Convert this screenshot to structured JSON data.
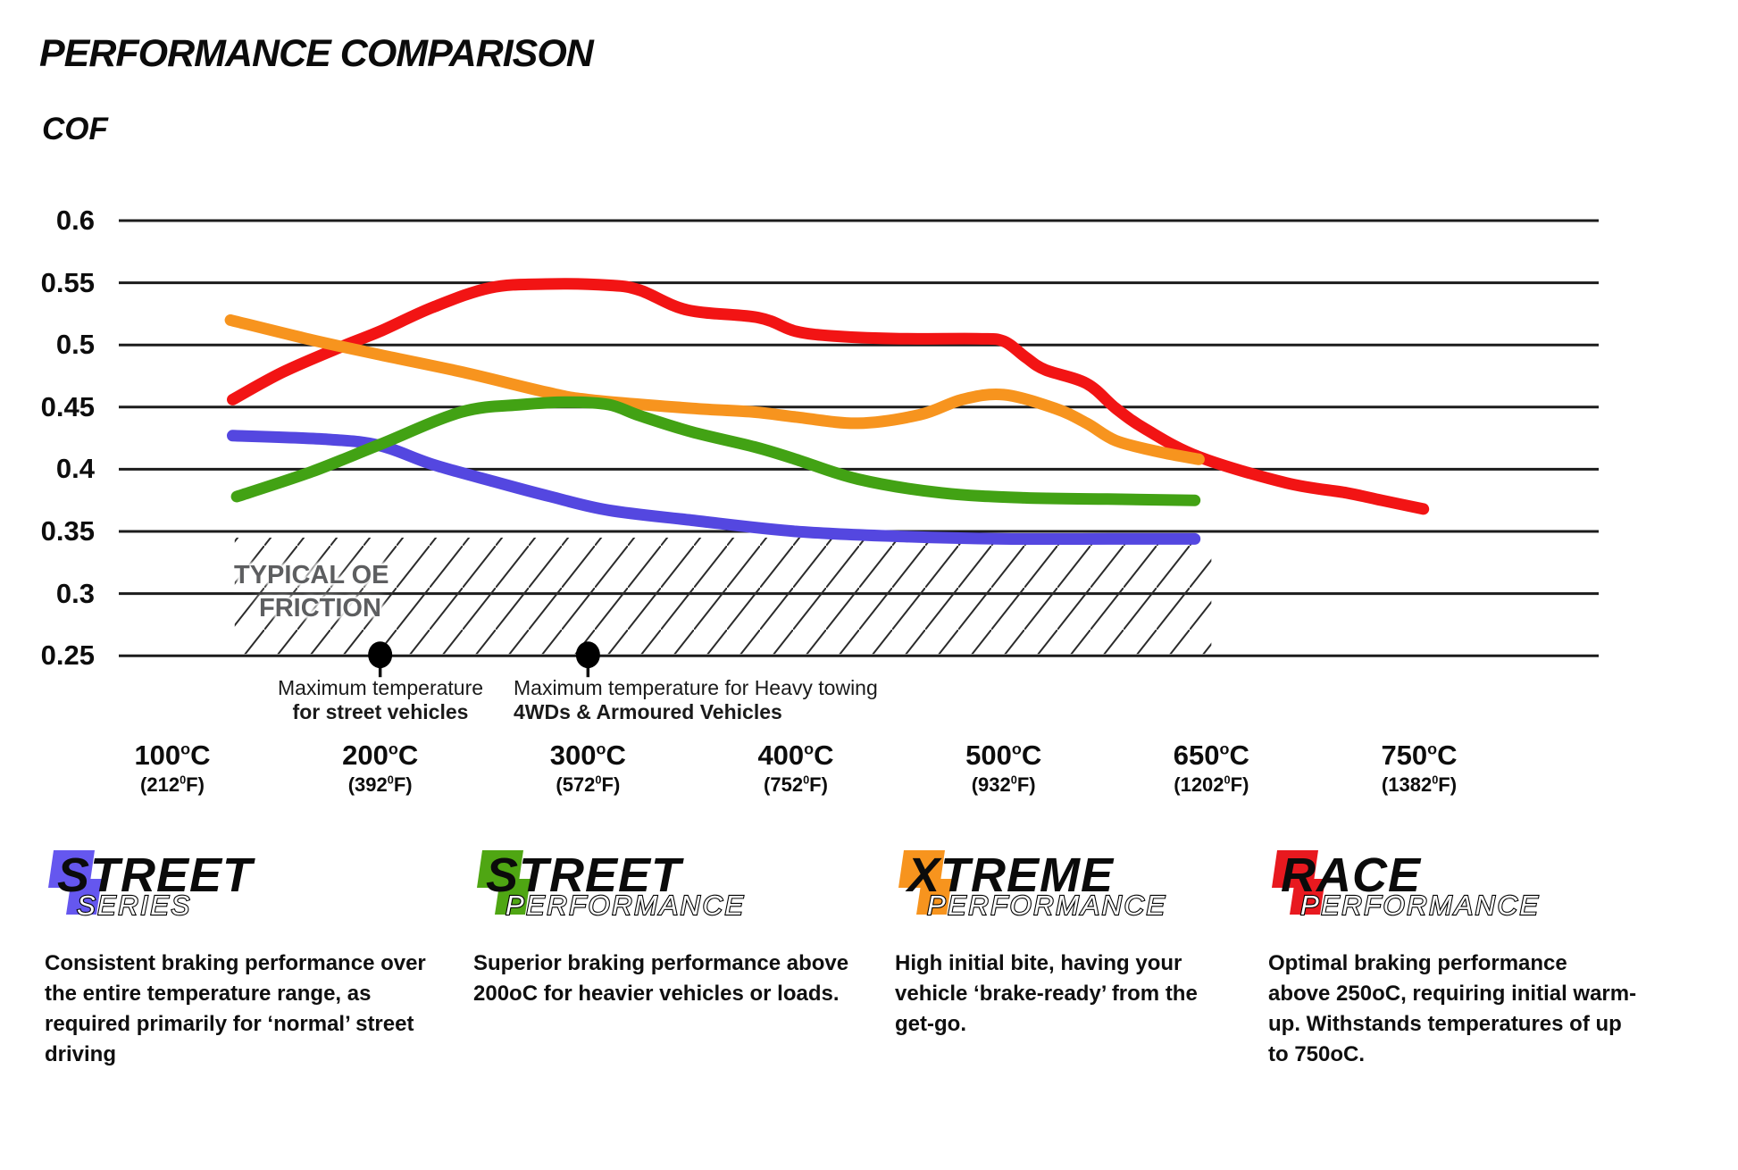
{
  "page": {
    "background": "#ffffff"
  },
  "header": {
    "title": "PERFORMANCE COMPARISON",
    "y_axis_title": "COF"
  },
  "chart_data": {
    "type": "line",
    "title": "PERFORMANCE COMPARISON",
    "ylabel": "COF",
    "ylim": [
      0.25,
      0.6
    ],
    "grid": "horizontal gridlines every 0.05, no vertical axis line",
    "gridline_color": "#1c1c1c",
    "y_ticks": [
      "0.6",
      "0.55",
      "0.5",
      "0.45",
      "0.4",
      "0.35",
      "0.3",
      "0.25"
    ],
    "x_axis": {
      "note": "categorical equal spacing",
      "categories_c": [
        "100",
        "200",
        "300",
        "400",
        "500",
        "650",
        "750"
      ],
      "categories_f": [
        "212",
        "392",
        "572",
        "752",
        "932",
        "1202",
        "1382"
      ],
      "c_sup": "o",
      "c_suffix": "C",
      "f_open": "(",
      "f_sup": "0",
      "f_suffix": "F)"
    },
    "series": [
      {
        "name": "Street Series",
        "color": "#5447e0",
        "points": [
          [
            129,
            0.427
          ],
          [
            175,
            0.424
          ],
          [
            200,
            0.419
          ],
          [
            225,
            0.404
          ],
          [
            255,
            0.39
          ],
          [
            282,
            0.378
          ],
          [
            310,
            0.367
          ],
          [
            350,
            0.359
          ],
          [
            400,
            0.35
          ],
          [
            450,
            0.346
          ],
          [
            500,
            0.344
          ],
          [
            575,
            0.344
          ],
          [
            638,
            0.344
          ]
        ]
      },
      {
        "name": "Race Performance",
        "color": "#f21414",
        "points": [
          [
            129,
            0.456
          ],
          [
            153,
            0.478
          ],
          [
            182,
            0.499
          ],
          [
            200,
            0.511
          ],
          [
            225,
            0.53
          ],
          [
            253,
            0.546
          ],
          [
            280,
            0.549
          ],
          [
            310,
            0.548
          ],
          [
            325,
            0.544
          ],
          [
            348,
            0.528
          ],
          [
            382,
            0.522
          ],
          [
            400,
            0.511
          ],
          [
            420,
            0.507
          ],
          [
            450,
            0.505
          ],
          [
            487,
            0.505
          ],
          [
            500,
            0.503
          ],
          [
            516,
            0.49
          ],
          [
            530,
            0.48
          ],
          [
            560,
            0.469
          ],
          [
            581,
            0.449
          ],
          [
            603,
            0.432
          ],
          [
            641,
            0.41
          ],
          [
            686,
            0.389
          ],
          [
            715,
            0.381
          ],
          [
            732,
            0.375
          ],
          [
            752,
            0.368
          ]
        ]
      },
      {
        "name": "Xtreme Performance",
        "color": "#f7941e",
        "points": [
          [
            128,
            0.52
          ],
          [
            167,
            0.504
          ],
          [
            200,
            0.492
          ],
          [
            240,
            0.478
          ],
          [
            280,
            0.462
          ],
          [
            300,
            0.456
          ],
          [
            350,
            0.449
          ],
          [
            380,
            0.446
          ],
          [
            400,
            0.442
          ],
          [
            430,
            0.437
          ],
          [
            460,
            0.444
          ],
          [
            480,
            0.456
          ],
          [
            500,
            0.46
          ],
          [
            537,
            0.449
          ],
          [
            560,
            0.437
          ],
          [
            581,
            0.423
          ],
          [
            612,
            0.414
          ],
          [
            641,
            0.408
          ]
        ]
      },
      {
        "name": "Street Performance",
        "color": "#42a214",
        "points": [
          [
            131,
            0.378
          ],
          [
            167,
            0.398
          ],
          [
            200,
            0.42
          ],
          [
            239,
            0.446
          ],
          [
            268,
            0.452
          ],
          [
            290,
            0.454
          ],
          [
            310,
            0.452
          ],
          [
            325,
            0.443
          ],
          [
            350,
            0.43
          ],
          [
            380,
            0.418
          ],
          [
            400,
            0.408
          ],
          [
            430,
            0.392
          ],
          [
            470,
            0.381
          ],
          [
            515,
            0.377
          ],
          [
            575,
            0.376
          ],
          [
            638,
            0.375
          ]
        ]
      }
    ],
    "oe_band": {
      "label_line1": "TYPICAL OE",
      "label_line2": "FRICTION",
      "cof_range": [
        0.25,
        0.345
      ],
      "temp_range": [
        130,
        650
      ],
      "style": "diagonal hatch"
    },
    "annotations": [
      {
        "temp": 200,
        "cof": 0.25,
        "line1": "Maximum temperature",
        "line2": "for street vehicles"
      },
      {
        "temp": 300,
        "cof": 0.25,
        "line1": "Maximum temperature for Heavy towing",
        "line2": "4WDs & Armoured Vehicles"
      }
    ]
  },
  "legend": {
    "items": [
      {
        "id": "street-series",
        "word1": "STREET",
        "word2": "SERIES",
        "color": "#6557ef",
        "description": "Consistent braking performance over\nthe entire temperature range, as\nrequired primarily for ‘normal’ street\ndriving"
      },
      {
        "id": "street-performance",
        "word1": "STREET",
        "word2": "PERFORMANCE",
        "color": "#4fa613",
        "description": "Superior braking performance above\n200oC for heavier vehicles or loads."
      },
      {
        "id": "xtreme-performance",
        "word1": "XTREME",
        "word2": "PERFORMANCE",
        "color": "#f7941e",
        "description": "High initial bite, having your\nvehicle ‘brake-ready’ from the\nget-go."
      },
      {
        "id": "race-performance",
        "word1": "RACE",
        "word2": "PERFORMANCE",
        "color": "#e8191f",
        "description": "Optimal braking performance\nabove 250oC, requiring initial warm-\nup. Withstands temperatures of up\nto 750oC."
      }
    ]
  }
}
